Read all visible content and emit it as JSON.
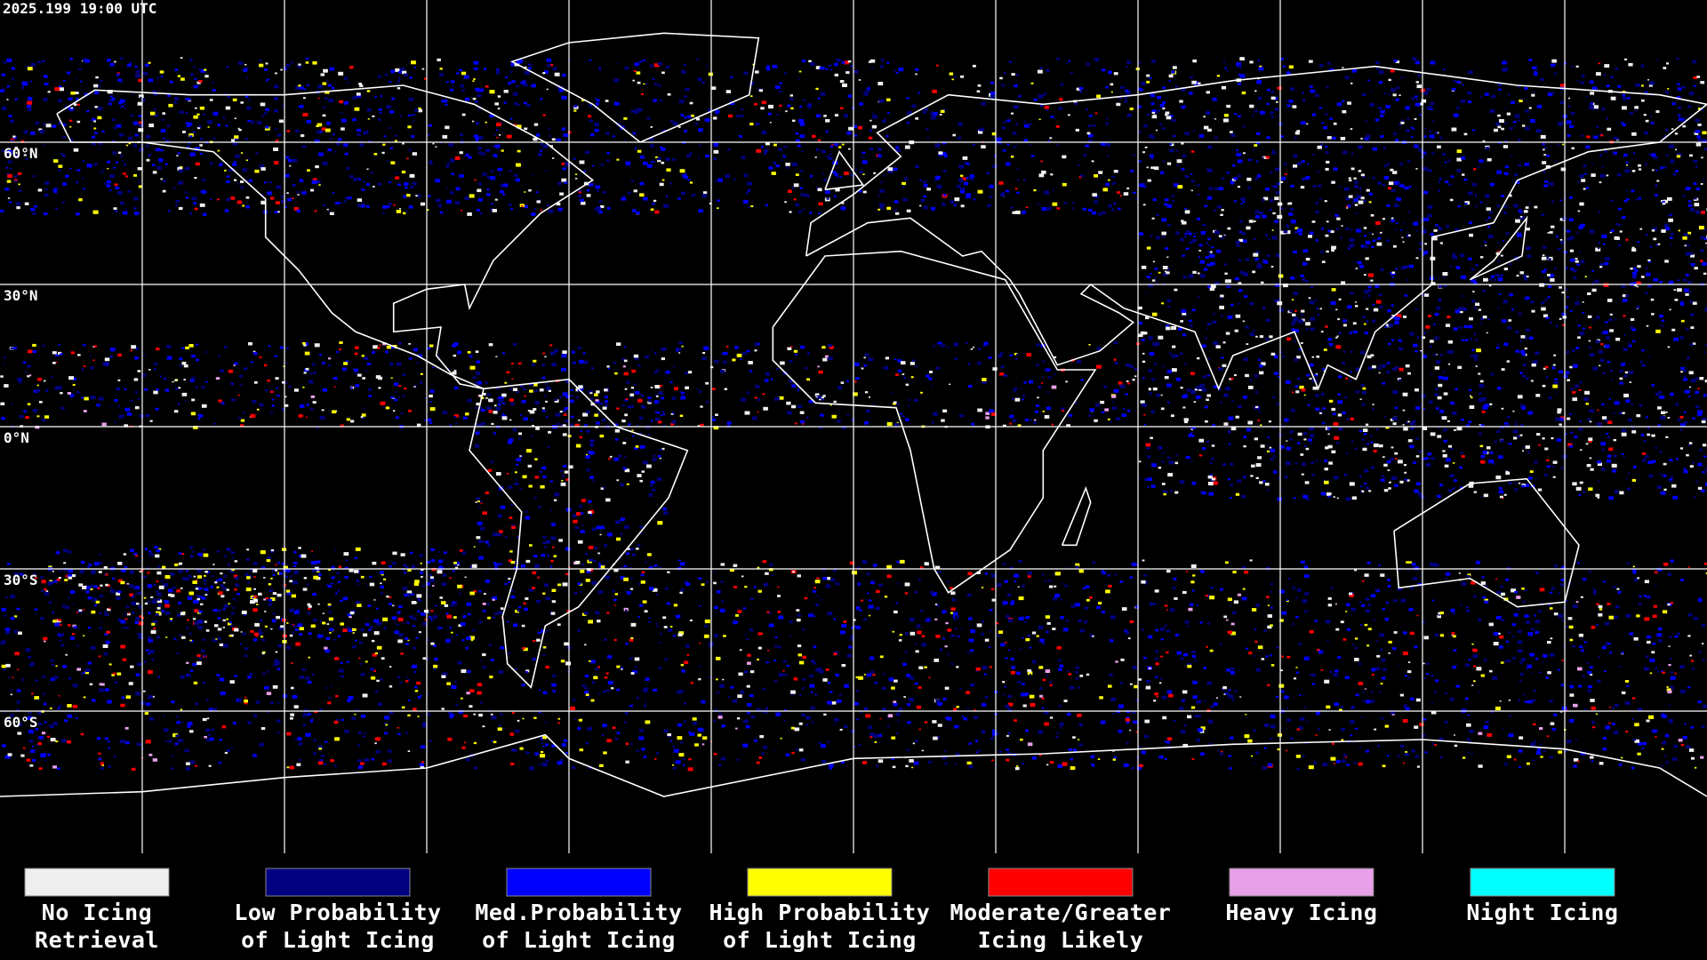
{
  "header": {
    "timestamp": "2025.199 19:00 UTC"
  },
  "map": {
    "latitude_labels": [
      "60°N",
      "30°N",
      "0°N",
      "30°S",
      "60°S"
    ]
  },
  "legend": {
    "items": [
      {
        "label": [
          "No Icing",
          "Retrieval"
        ],
        "color": "#efefef"
      },
      {
        "label": [
          "Low Probability",
          "of Light Icing"
        ],
        "color": "#000080"
      },
      {
        "label": [
          "Med.Probability",
          "of Light Icing"
        ],
        "color": "#0000ff"
      },
      {
        "label": [
          "High Probability",
          "of Light Icing"
        ],
        "color": "#ffff00"
      },
      {
        "label": [
          "Moderate/Greater",
          "Icing Likely"
        ],
        "color": "#ff0000"
      },
      {
        "label": [
          "Heavy Icing"
        ],
        "color": "#e8a0e8"
      },
      {
        "label": [
          "Night Icing"
        ],
        "color": "#00ffff"
      }
    ]
  }
}
